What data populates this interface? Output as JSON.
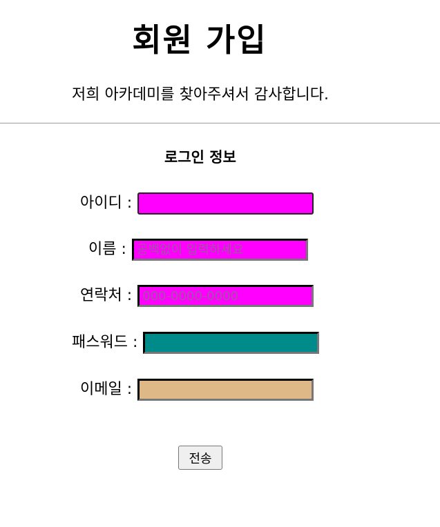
{
  "header": {
    "title": "회원 가입",
    "subtitle": "저희 아카데미를 찾아주셔서 감사합니다."
  },
  "login_section": {
    "title": "로그인 정보"
  },
  "fields": {
    "id": {
      "label": "아이디 :",
      "value": "",
      "placeholder": "",
      "color": "#ff00ff"
    },
    "name": {
      "label": "이름 :",
      "value": "",
      "placeholder": "공백없이 입력하세요",
      "color": "#ff00ff"
    },
    "contact": {
      "label": "연락처 :",
      "value": "",
      "placeholder": "000-0000-0000",
      "color": "#ff00ff"
    },
    "password": {
      "label": "패스워드 :",
      "value": "",
      "placeholder": "",
      "color": "#008b8b"
    },
    "email": {
      "label": "이메일 :",
      "value": "",
      "placeholder": "",
      "color": "#deb887"
    }
  },
  "submit": {
    "label": "전송"
  }
}
